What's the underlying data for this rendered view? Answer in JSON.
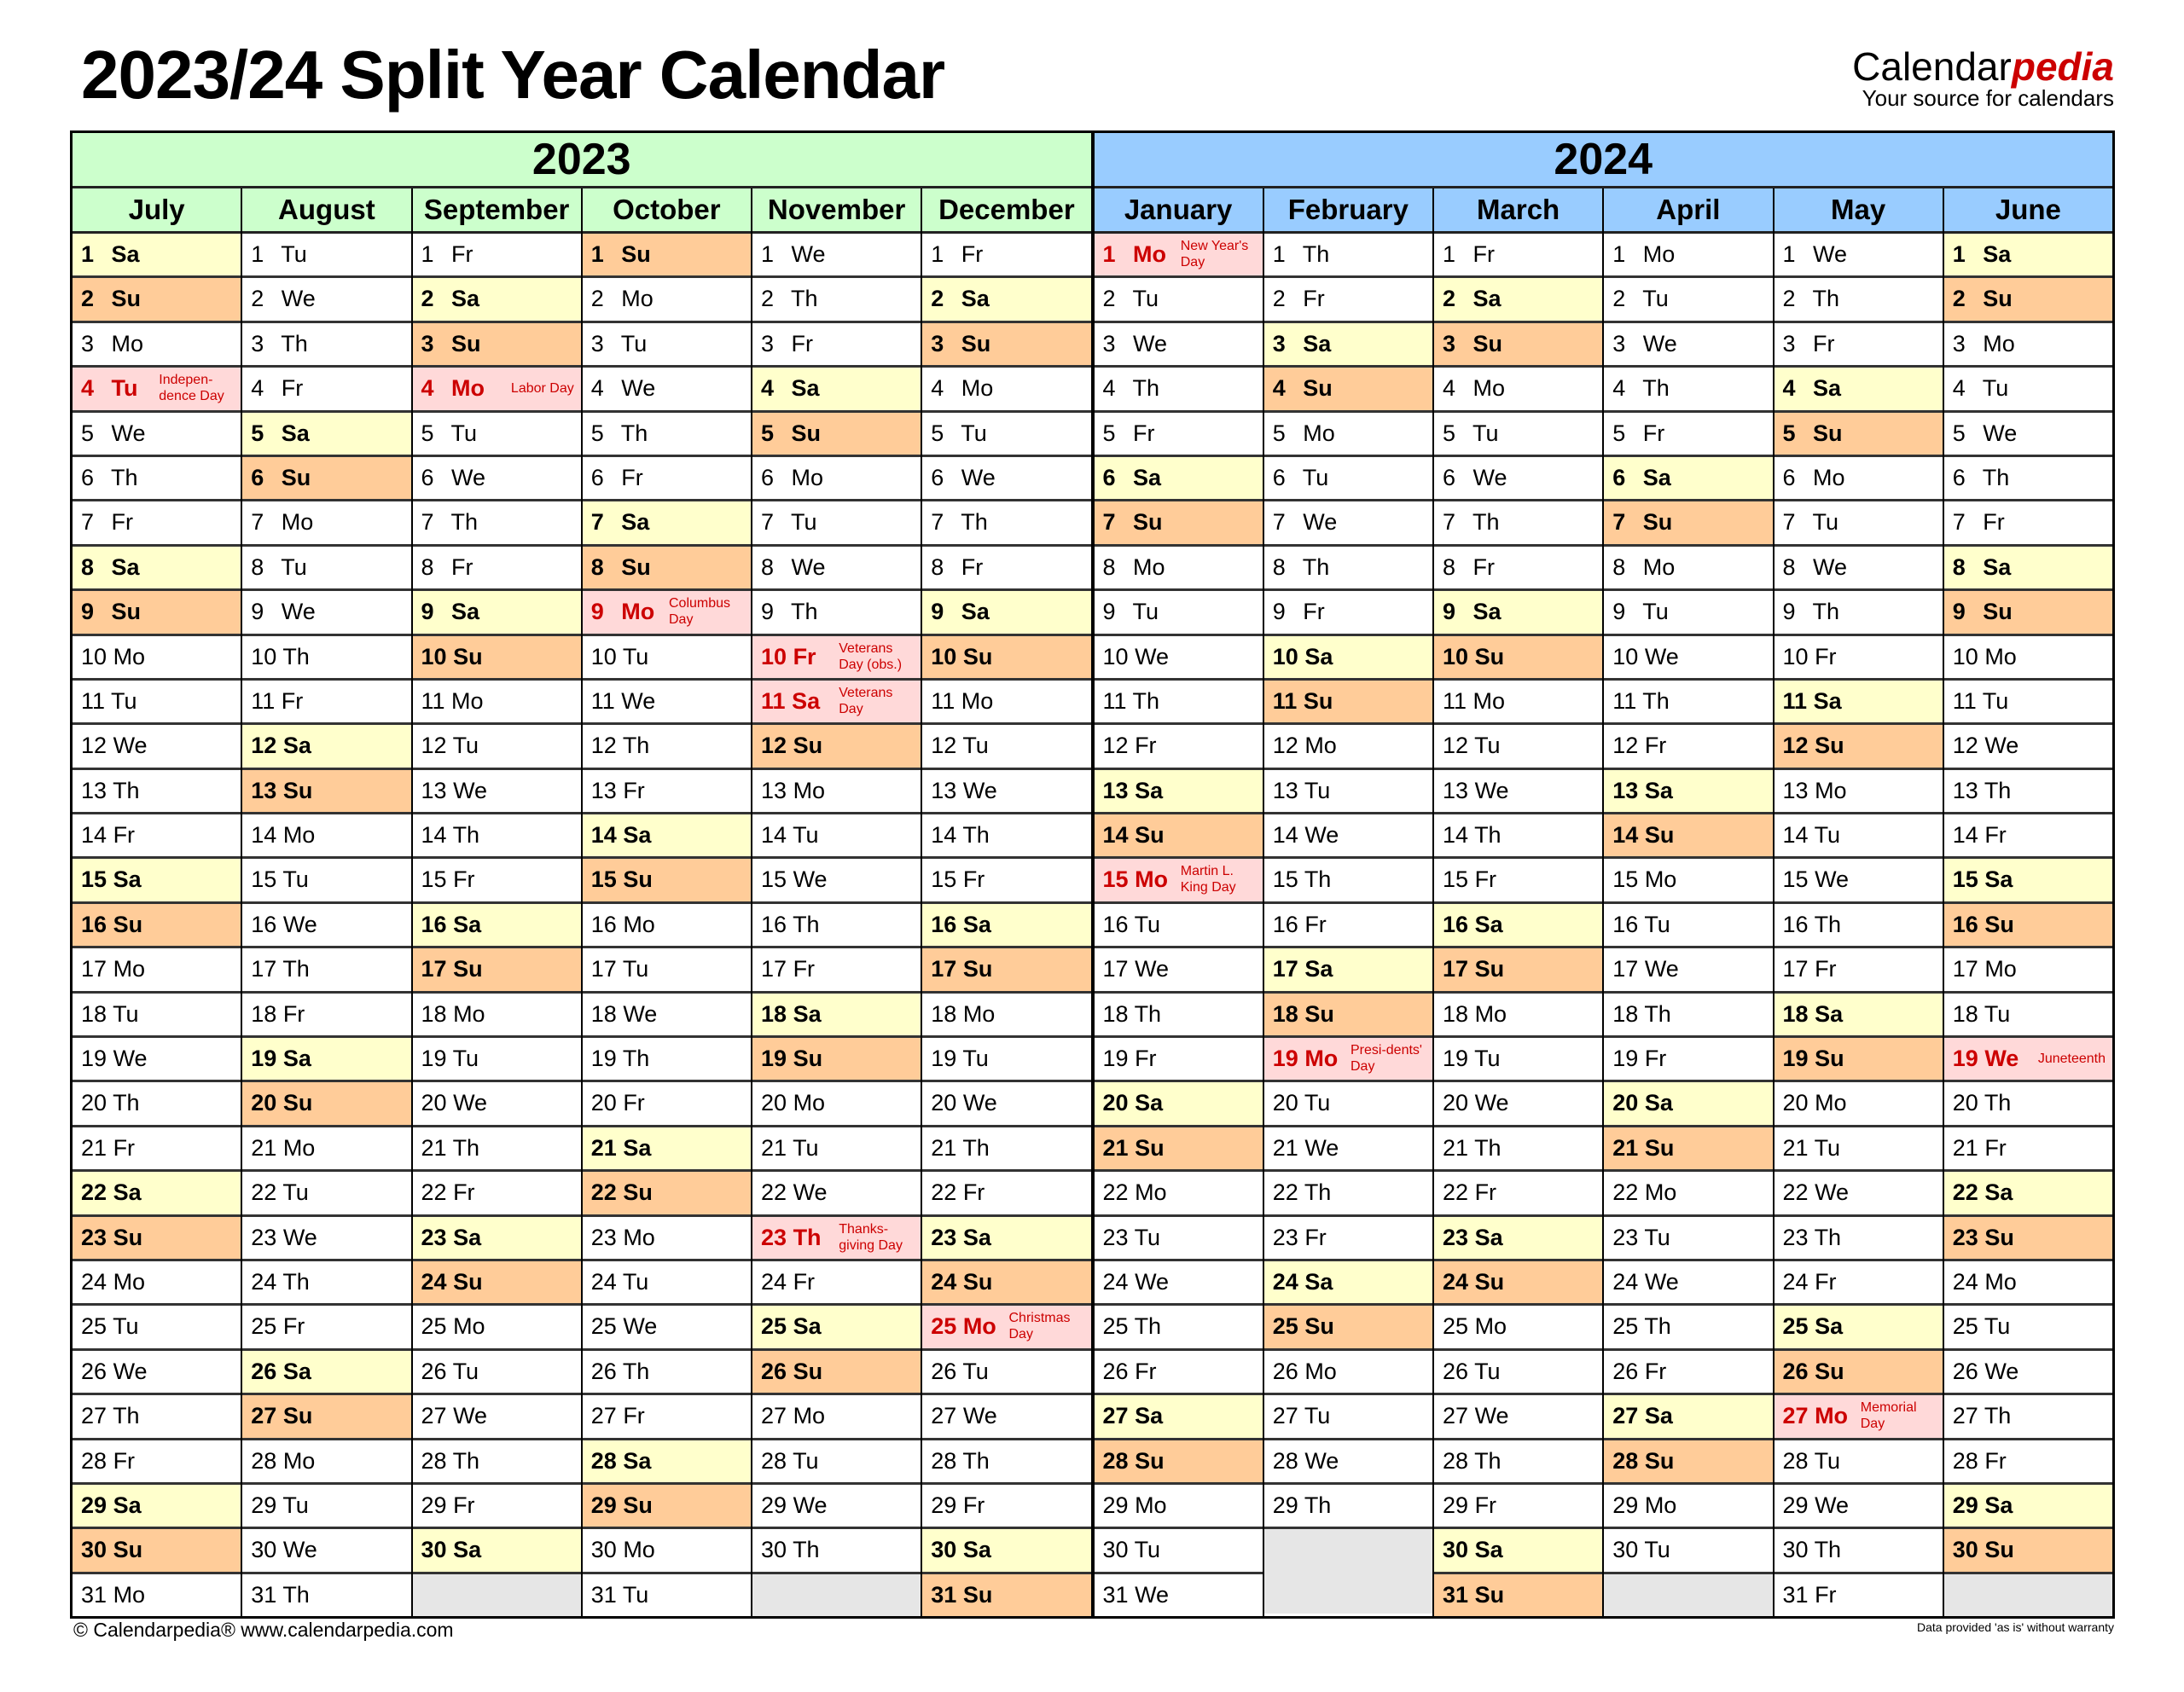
{
  "title": "2023/24 Split Year Calendar",
  "logo": {
    "brand_a": "Calendar",
    "brand_b": "pedia",
    "tagline": "Your source for calendars"
  },
  "colors": {
    "year1_header": "#ccffcc",
    "year2_header": "#99ccff",
    "saturday": "#ffffcc",
    "sunday": "#ffcc99",
    "holiday": "#ffd9d9",
    "holiday_text": "#cc0000",
    "empty": "#e6e6e6"
  },
  "years": [
    {
      "label": "2023",
      "months": [
        {
          "name": "July",
          "days": [
            "Sa",
            "Su",
            "Mo",
            "Tu",
            "We",
            "Th",
            "Fr",
            "Sa",
            "Su",
            "Mo",
            "Tu",
            "We",
            "Th",
            "Fr",
            "Sa",
            "Su",
            "Mo",
            "Tu",
            "We",
            "Th",
            "Fr",
            "Sa",
            "Su",
            "Mo",
            "Tu",
            "We",
            "Th",
            "Fr",
            "Sa",
            "Su",
            "Mo"
          ],
          "holidays": {
            "4": "Indepen-dence Day"
          }
        },
        {
          "name": "August",
          "days": [
            "Tu",
            "We",
            "Th",
            "Fr",
            "Sa",
            "Su",
            "Mo",
            "Tu",
            "We",
            "Th",
            "Fr",
            "Sa",
            "Su",
            "Mo",
            "Tu",
            "We",
            "Th",
            "Fr",
            "Sa",
            "Su",
            "Mo",
            "Tu",
            "We",
            "Th",
            "Fr",
            "Sa",
            "Su",
            "Mo",
            "Tu",
            "We",
            "Th"
          ],
          "holidays": {}
        },
        {
          "name": "September",
          "days": [
            "Fr",
            "Sa",
            "Su",
            "Mo",
            "Tu",
            "We",
            "Th",
            "Fr",
            "Sa",
            "Su",
            "Mo",
            "Tu",
            "We",
            "Th",
            "Fr",
            "Sa",
            "Su",
            "Mo",
            "Tu",
            "We",
            "Th",
            "Fr",
            "Sa",
            "Su",
            "Mo",
            "Tu",
            "We",
            "Th",
            "Fr",
            "Sa"
          ],
          "holidays": {
            "4": "Labor Day"
          }
        },
        {
          "name": "October",
          "days": [
            "Su",
            "Mo",
            "Tu",
            "We",
            "Th",
            "Fr",
            "Sa",
            "Su",
            "Mo",
            "Tu",
            "We",
            "Th",
            "Fr",
            "Sa",
            "Su",
            "Mo",
            "Tu",
            "We",
            "Th",
            "Fr",
            "Sa",
            "Su",
            "Mo",
            "Tu",
            "We",
            "Th",
            "Fr",
            "Sa",
            "Su",
            "Mo",
            "Tu"
          ],
          "holidays": {
            "9": "Columbus Day"
          }
        },
        {
          "name": "November",
          "days": [
            "We",
            "Th",
            "Fr",
            "Sa",
            "Su",
            "Mo",
            "Tu",
            "We",
            "Th",
            "Fr",
            "Sa",
            "Su",
            "Mo",
            "Tu",
            "We",
            "Th",
            "Fr",
            "Sa",
            "Su",
            "Mo",
            "Tu",
            "We",
            "Th",
            "Fr",
            "Sa",
            "Su",
            "Mo",
            "Tu",
            "We",
            "Th"
          ],
          "holidays": {
            "10": "Veterans Day (obs.)",
            "11": "Veterans Day",
            "23": "Thanks-giving Day"
          }
        },
        {
          "name": "December",
          "days": [
            "Fr",
            "Sa",
            "Su",
            "Mo",
            "Tu",
            "We",
            "Th",
            "Fr",
            "Sa",
            "Su",
            "Mo",
            "Tu",
            "We",
            "Th",
            "Fr",
            "Sa",
            "Su",
            "Mo",
            "Tu",
            "We",
            "Th",
            "Fr",
            "Sa",
            "Su",
            "Mo",
            "Tu",
            "We",
            "Th",
            "Fr",
            "Sa",
            "Su"
          ],
          "holidays": {
            "25": "Christmas Day"
          }
        }
      ]
    },
    {
      "label": "2024",
      "months": [
        {
          "name": "January",
          "days": [
            "Mo",
            "Tu",
            "We",
            "Th",
            "Fr",
            "Sa",
            "Su",
            "Mo",
            "Tu",
            "We",
            "Th",
            "Fr",
            "Sa",
            "Su",
            "Mo",
            "Tu",
            "We",
            "Th",
            "Fr",
            "Sa",
            "Su",
            "Mo",
            "Tu",
            "We",
            "Th",
            "Fr",
            "Sa",
            "Su",
            "Mo",
            "Tu",
            "We"
          ],
          "holidays": {
            "1": "New Year's Day",
            "15": "Martin L. King Day"
          }
        },
        {
          "name": "February",
          "days": [
            "Th",
            "Fr",
            "Sa",
            "Su",
            "Mo",
            "Tu",
            "We",
            "Th",
            "Fr",
            "Sa",
            "Su",
            "Mo",
            "Tu",
            "We",
            "Th",
            "Fr",
            "Sa",
            "Su",
            "Mo",
            "Tu",
            "We",
            "Th",
            "Fr",
            "Sa",
            "Su",
            "Mo",
            "Tu",
            "We",
            "Th"
          ],
          "holidays": {
            "19": "Presi-dents' Day"
          }
        },
        {
          "name": "March",
          "days": [
            "Fr",
            "Sa",
            "Su",
            "Mo",
            "Tu",
            "We",
            "Th",
            "Fr",
            "Sa",
            "Su",
            "Mo",
            "Tu",
            "We",
            "Th",
            "Fr",
            "Sa",
            "Su",
            "Mo",
            "Tu",
            "We",
            "Th",
            "Fr",
            "Sa",
            "Su",
            "Mo",
            "Tu",
            "We",
            "Th",
            "Fr",
            "Sa",
            "Su"
          ],
          "holidays": {}
        },
        {
          "name": "April",
          "days": [
            "Mo",
            "Tu",
            "We",
            "Th",
            "Fr",
            "Sa",
            "Su",
            "Mo",
            "Tu",
            "We",
            "Th",
            "Fr",
            "Sa",
            "Su",
            "Mo",
            "Tu",
            "We",
            "Th",
            "Fr",
            "Sa",
            "Su",
            "Mo",
            "Tu",
            "We",
            "Th",
            "Fr",
            "Sa",
            "Su",
            "Mo",
            "Tu"
          ],
          "holidays": {}
        },
        {
          "name": "May",
          "days": [
            "We",
            "Th",
            "Fr",
            "Sa",
            "Su",
            "Mo",
            "Tu",
            "We",
            "Th",
            "Fr",
            "Sa",
            "Su",
            "Mo",
            "Tu",
            "We",
            "Th",
            "Fr",
            "Sa",
            "Su",
            "Mo",
            "Tu",
            "We",
            "Th",
            "Fr",
            "Sa",
            "Su",
            "Mo",
            "Tu",
            "We",
            "Th",
            "Fr"
          ],
          "holidays": {
            "27": "Memorial Day"
          }
        },
        {
          "name": "June",
          "days": [
            "Sa",
            "Su",
            "Mo",
            "Tu",
            "We",
            "Th",
            "Fr",
            "Sa",
            "Su",
            "Mo",
            "Tu",
            "We",
            "Th",
            "Fr",
            "Sa",
            "Su",
            "Mo",
            "Tu",
            "We",
            "Th",
            "Fr",
            "Sa",
            "Su",
            "Mo",
            "Tu",
            "We",
            "Th",
            "Fr",
            "Sa",
            "Su"
          ],
          "holidays": {
            "19": "Juneteenth"
          }
        }
      ]
    }
  ],
  "footer": {
    "copyright": "© Calendarpedia®   www.calendarpedia.com",
    "disclaimer": "Data provided 'as is' without warranty"
  }
}
